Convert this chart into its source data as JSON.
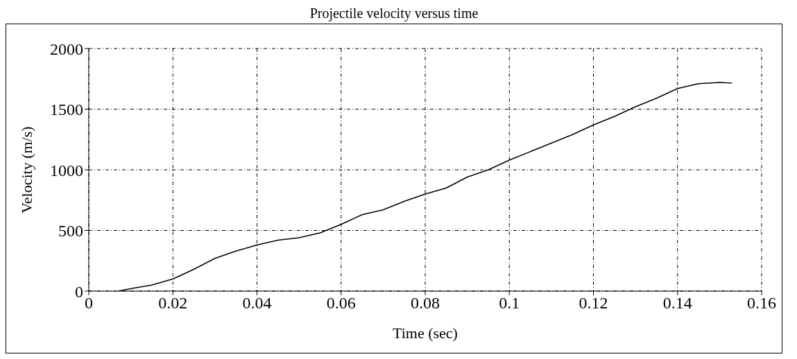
{
  "chart_data": {
    "type": "line",
    "title": "Projectile velocity versus time",
    "xlabel": "Time (sec)",
    "ylabel": "Velocity (m/s)",
    "series": [
      {
        "color": "#000000",
        "x": [
          0.007,
          0.01,
          0.015,
          0.02,
          0.025,
          0.03,
          0.035,
          0.04,
          0.045,
          0.05,
          0.055,
          0.06,
          0.065,
          0.07,
          0.075,
          0.08,
          0.085,
          0.09,
          0.095,
          0.1,
          0.105,
          0.11,
          0.115,
          0.12,
          0.125,
          0.13,
          0.135,
          0.14,
          0.145,
          0.15,
          0.153
        ],
        "values": [
          0,
          20,
          50,
          100,
          180,
          270,
          330,
          380,
          420,
          440,
          480,
          550,
          630,
          670,
          740,
          800,
          850,
          940,
          1000,
          1080,
          1150,
          1220,
          1290,
          1370,
          1440,
          1520,
          1590,
          1670,
          1710,
          1720,
          1715
        ]
      }
    ],
    "xlim": [
      0,
      0.16
    ],
    "xticks": [
      0,
      0.02,
      0.04,
      0.06,
      0.08,
      0.1,
      0.12,
      0.14,
      0.16
    ],
    "ylim": [
      0,
      2000
    ],
    "yticks": [
      0,
      500,
      1000,
      1500,
      2000
    ],
    "grid": true,
    "line_style": "solid",
    "marker": "none"
  }
}
